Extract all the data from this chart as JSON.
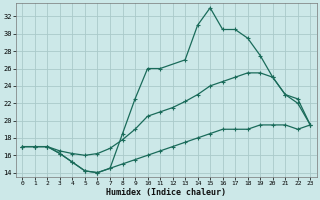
{
  "xlabel": "Humidex (Indice chaleur)",
  "bg_color": "#cce8e8",
  "grid_color": "#aacaca",
  "line_color": "#1a6b5a",
  "xlim": [
    -0.5,
    23.5
  ],
  "ylim": [
    13.5,
    33.5
  ],
  "yticks": [
    14,
    16,
    18,
    20,
    22,
    24,
    26,
    28,
    30,
    32
  ],
  "xticks": [
    0,
    1,
    2,
    3,
    4,
    5,
    6,
    7,
    8,
    9,
    10,
    11,
    12,
    13,
    14,
    15,
    16,
    17,
    18,
    19,
    20,
    21,
    22,
    23
  ],
  "line1_x": [
    0,
    1,
    2,
    3,
    4,
    5,
    6,
    7,
    8,
    9,
    10,
    11,
    13,
    14,
    15,
    16,
    17,
    18,
    19,
    20,
    21,
    22,
    23
  ],
  "line1_y": [
    17,
    17,
    17,
    16.2,
    15.2,
    14.2,
    14.0,
    14.5,
    18.5,
    22.5,
    26,
    26,
    27,
    31,
    33,
    30.5,
    30.5,
    29.5,
    27.5,
    25,
    23,
    22.5,
    19.5
  ],
  "line2_x": [
    0,
    1,
    2,
    3,
    4,
    5,
    6,
    7,
    8,
    9,
    10,
    11,
    12,
    13,
    14,
    15,
    16,
    17,
    18,
    19,
    20,
    21,
    22,
    23
  ],
  "line2_y": [
    17,
    17,
    17,
    16.5,
    16.2,
    16,
    16.2,
    16.8,
    17.8,
    19,
    20.5,
    21,
    21.5,
    22.2,
    23,
    24,
    24.5,
    25,
    25.5,
    25.5,
    25,
    23,
    22,
    19.5
  ],
  "line3_x": [
    0,
    1,
    2,
    3,
    4,
    5,
    6,
    7,
    8,
    9,
    10,
    11,
    12,
    13,
    14,
    15,
    16,
    17,
    18,
    19,
    20,
    21,
    22,
    23
  ],
  "line3_y": [
    17,
    17,
    17,
    16.2,
    15.2,
    14.2,
    14.0,
    14.5,
    15,
    15.5,
    16,
    16.5,
    17,
    17.5,
    18,
    18.5,
    19,
    19,
    19,
    19.5,
    19.5,
    19.5,
    19,
    19.5
  ]
}
